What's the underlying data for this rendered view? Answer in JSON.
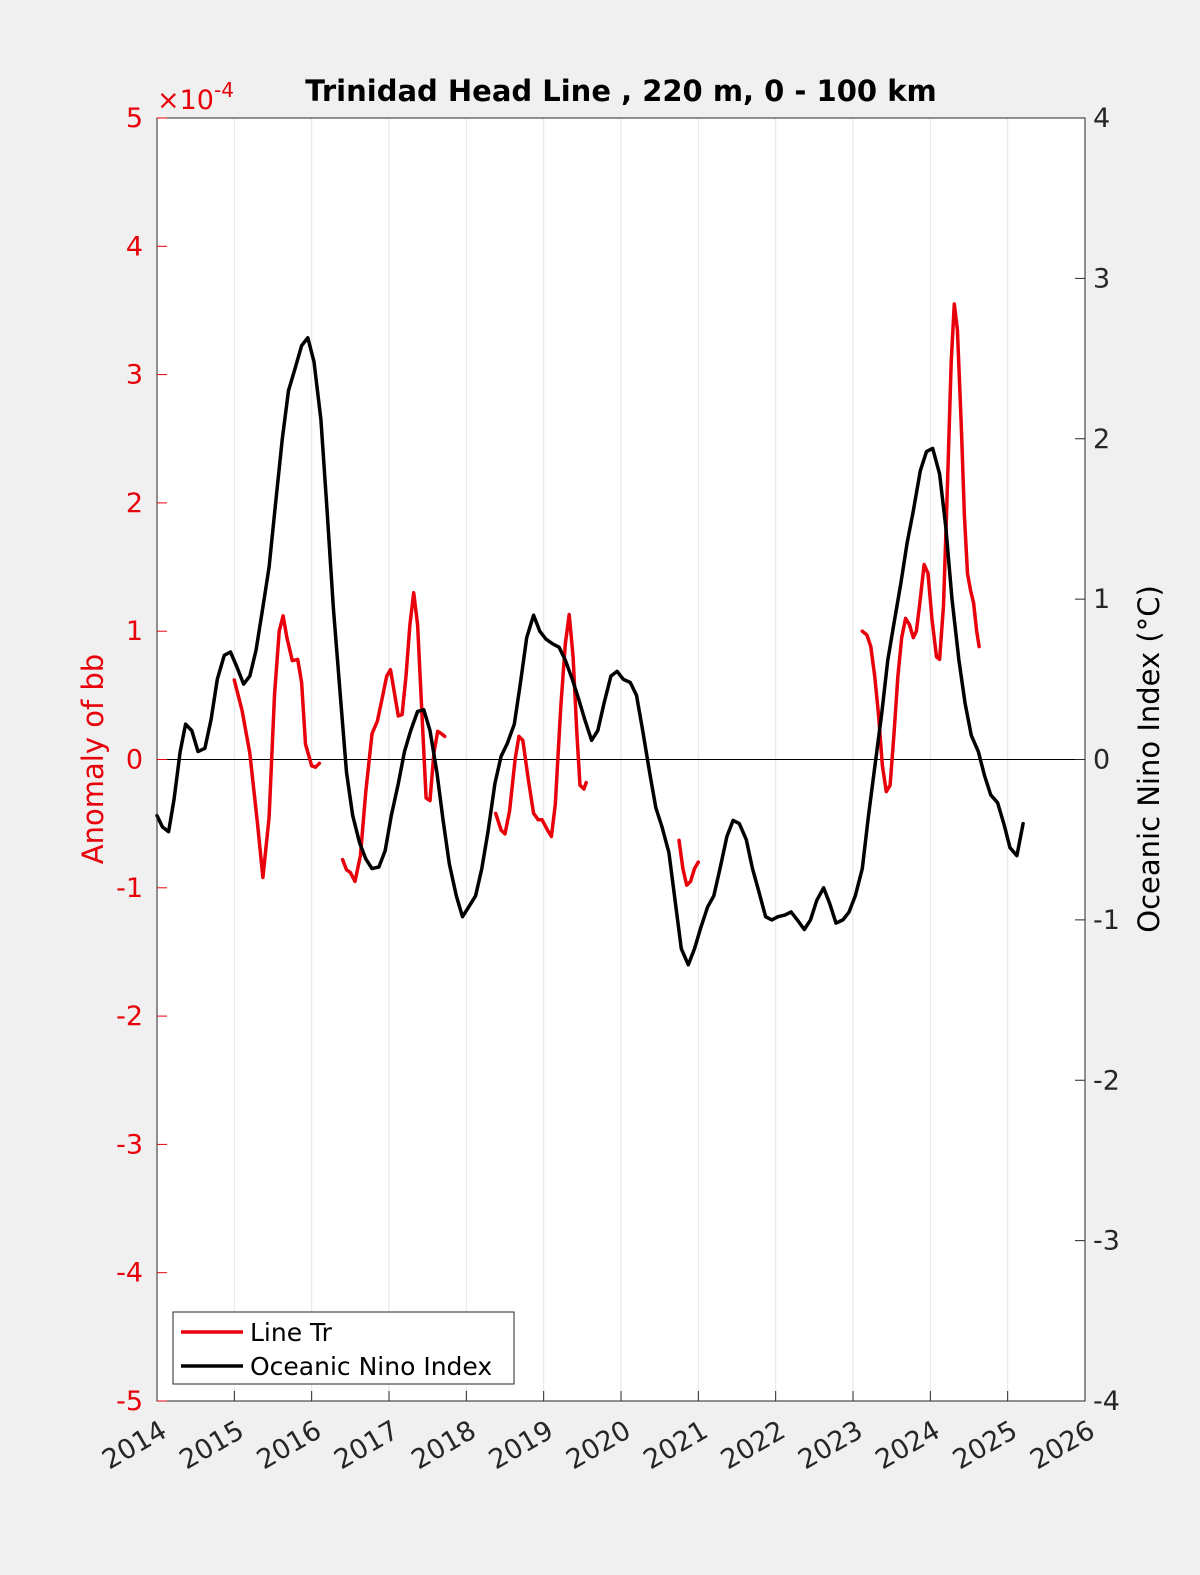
{
  "chart_data": {
    "type": "line",
    "title": "Trinidad Head Line , 220 m, 0 - 100 km",
    "xlabel": "",
    "y_left_label": "Anomaly of bb",
    "y_left_exponent_label": "×10",
    "y_left_exponent_value": "-4",
    "y_right_label": "Oceanic Nino Index (°C)",
    "xlim": [
      2014,
      2026
    ],
    "ylim_left": [
      -5,
      5
    ],
    "ylim_right": [
      -4,
      4
    ],
    "x_ticks": [
      "2014",
      "2015",
      "2016",
      "2017",
      "2018",
      "2019",
      "2020",
      "2021",
      "2022",
      "2023",
      "2024",
      "2025",
      "2026"
    ],
    "y_left_ticks": [
      "-5",
      "-4",
      "-3",
      "-2",
      "-1",
      "0",
      "1",
      "2",
      "3",
      "4",
      "5"
    ],
    "y_right_ticks": [
      "-4",
      "-3",
      "-2",
      "-1",
      "0",
      "1",
      "2",
      "3",
      "4"
    ],
    "grid": "vertical",
    "legend_position": "bottom-left",
    "colors": {
      "line_tr": "#e8000b",
      "oni": "#000000",
      "left_axis": "#e8000b"
    },
    "series": [
      {
        "name": "Line Tr",
        "axis": "left",
        "segments": [
          [
            [
              2015.0,
              0.62
            ],
            [
              2015.1,
              0.38
            ],
            [
              2015.2,
              0.05
            ],
            [
              2015.3,
              -0.5
            ],
            [
              2015.37,
              -0.92
            ],
            [
              2015.45,
              -0.45
            ],
            [
              2015.52,
              0.5
            ],
            [
              2015.58,
              1.0
            ],
            [
              2015.63,
              1.12
            ],
            [
              2015.68,
              0.95
            ],
            [
              2015.75,
              0.77
            ],
            [
              2015.82,
              0.78
            ],
            [
              2015.87,
              0.6
            ],
            [
              2015.92,
              0.12
            ],
            [
              2016.0,
              -0.05
            ],
            [
              2016.05,
              -0.06
            ],
            [
              2016.1,
              -0.03
            ]
          ],
          [
            [
              2016.4,
              -0.78
            ],
            [
              2016.45,
              -0.86
            ],
            [
              2016.5,
              -0.88
            ],
            [
              2016.56,
              -0.95
            ],
            [
              2016.63,
              -0.75
            ],
            [
              2016.7,
              -0.25
            ],
            [
              2016.78,
              0.2
            ],
            [
              2016.85,
              0.3
            ],
            [
              2016.92,
              0.5
            ],
            [
              2016.97,
              0.65
            ],
            [
              2017.02,
              0.7
            ],
            [
              2017.07,
              0.52
            ],
            [
              2017.12,
              0.34
            ],
            [
              2017.17,
              0.35
            ],
            [
              2017.22,
              0.65
            ],
            [
              2017.27,
              1.05
            ],
            [
              2017.32,
              1.3
            ],
            [
              2017.37,
              1.05
            ],
            [
              2017.43,
              0.3
            ],
            [
              2017.48,
              -0.3
            ],
            [
              2017.53,
              -0.32
            ],
            [
              2017.58,
              0.05
            ],
            [
              2017.63,
              0.22
            ],
            [
              2017.68,
              0.2
            ],
            [
              2017.72,
              0.18
            ]
          ],
          [
            [
              2018.38,
              -0.42
            ],
            [
              2018.45,
              -0.55
            ],
            [
              2018.5,
              -0.58
            ],
            [
              2018.56,
              -0.4
            ],
            [
              2018.63,
              0.0
            ],
            [
              2018.68,
              0.18
            ],
            [
              2018.73,
              0.15
            ],
            [
              2018.8,
              -0.15
            ],
            [
              2018.87,
              -0.42
            ],
            [
              2018.93,
              -0.47
            ],
            [
              2018.98,
              -0.47
            ],
            [
              2019.05,
              -0.55
            ],
            [
              2019.1,
              -0.6
            ],
            [
              2019.15,
              -0.35
            ],
            [
              2019.22,
              0.4
            ],
            [
              2019.28,
              0.9
            ],
            [
              2019.33,
              1.13
            ],
            [
              2019.38,
              0.8
            ],
            [
              2019.43,
              0.2
            ],
            [
              2019.47,
              -0.2
            ],
            [
              2019.52,
              -0.23
            ],
            [
              2019.55,
              -0.18
            ]
          ],
          [
            [
              2020.75,
              -0.63
            ],
            [
              2020.8,
              -0.85
            ],
            [
              2020.85,
              -0.98
            ],
            [
              2020.9,
              -0.95
            ],
            [
              2020.95,
              -0.85
            ],
            [
              2021.0,
              -0.8
            ]
          ],
          [
            [
              2023.12,
              1.0
            ],
            [
              2023.18,
              0.97
            ],
            [
              2023.23,
              0.88
            ],
            [
              2023.28,
              0.65
            ],
            [
              2023.33,
              0.35
            ],
            [
              2023.38,
              -0.05
            ],
            [
              2023.43,
              -0.25
            ],
            [
              2023.48,
              -0.2
            ],
            [
              2023.53,
              0.2
            ],
            [
              2023.58,
              0.65
            ],
            [
              2023.63,
              0.95
            ],
            [
              2023.68,
              1.1
            ],
            [
              2023.73,
              1.05
            ],
            [
              2023.78,
              0.95
            ],
            [
              2023.82,
              1.0
            ],
            [
              2023.87,
              1.25
            ],
            [
              2023.92,
              1.52
            ],
            [
              2023.97,
              1.45
            ],
            [
              2024.02,
              1.1
            ],
            [
              2024.08,
              0.8
            ],
            [
              2024.12,
              0.78
            ],
            [
              2024.17,
              1.2
            ],
            [
              2024.22,
              2.1
            ],
            [
              2024.27,
              3.1
            ],
            [
              2024.31,
              3.55
            ],
            [
              2024.35,
              3.35
            ],
            [
              2024.4,
              2.6
            ],
            [
              2024.44,
              1.9
            ],
            [
              2024.48,
              1.45
            ],
            [
              2024.52,
              1.32
            ],
            [
              2024.56,
              1.22
            ],
            [
              2024.6,
              1.0
            ],
            [
              2024.63,
              0.88
            ]
          ]
        ]
      },
      {
        "name": "Oceanic Nino Index",
        "axis": "right",
        "points": [
          [
            2014.0,
            -0.35
          ],
          [
            2014.07,
            -0.42
          ],
          [
            2014.15,
            -0.45
          ],
          [
            2014.22,
            -0.25
          ],
          [
            2014.3,
            0.05
          ],
          [
            2014.37,
            0.22
          ],
          [
            2014.45,
            0.18
          ],
          [
            2014.53,
            0.05
          ],
          [
            2014.62,
            0.07
          ],
          [
            2014.7,
            0.25
          ],
          [
            2014.78,
            0.5
          ],
          [
            2014.87,
            0.65
          ],
          [
            2014.95,
            0.67
          ],
          [
            2015.03,
            0.58
          ],
          [
            2015.12,
            0.47
          ],
          [
            2015.2,
            0.52
          ],
          [
            2015.28,
            0.68
          ],
          [
            2015.37,
            0.95
          ],
          [
            2015.45,
            1.2
          ],
          [
            2015.53,
            1.58
          ],
          [
            2015.62,
            2.0
          ],
          [
            2015.7,
            2.3
          ],
          [
            2015.78,
            2.43
          ],
          [
            2015.87,
            2.58
          ],
          [
            2015.95,
            2.63
          ],
          [
            2016.03,
            2.48
          ],
          [
            2016.12,
            2.12
          ],
          [
            2016.2,
            1.55
          ],
          [
            2016.28,
            0.95
          ],
          [
            2016.37,
            0.4
          ],
          [
            2016.45,
            -0.08
          ],
          [
            2016.53,
            -0.35
          ],
          [
            2016.62,
            -0.52
          ],
          [
            2016.7,
            -0.62
          ],
          [
            2016.78,
            -0.68
          ],
          [
            2016.87,
            -0.67
          ],
          [
            2016.95,
            -0.57
          ],
          [
            2017.03,
            -0.35
          ],
          [
            2017.12,
            -0.15
          ],
          [
            2017.2,
            0.05
          ],
          [
            2017.28,
            0.18
          ],
          [
            2017.37,
            0.3
          ],
          [
            2017.45,
            0.31
          ],
          [
            2017.53,
            0.18
          ],
          [
            2017.62,
            -0.08
          ],
          [
            2017.7,
            -0.38
          ],
          [
            2017.78,
            -0.65
          ],
          [
            2017.87,
            -0.85
          ],
          [
            2017.95,
            -0.98
          ],
          [
            2018.03,
            -0.92
          ],
          [
            2018.12,
            -0.85
          ],
          [
            2018.2,
            -0.68
          ],
          [
            2018.28,
            -0.45
          ],
          [
            2018.37,
            -0.15
          ],
          [
            2018.45,
            0.02
          ],
          [
            2018.53,
            0.1
          ],
          [
            2018.62,
            0.22
          ],
          [
            2018.7,
            0.48
          ],
          [
            2018.78,
            0.76
          ],
          [
            2018.87,
            0.9
          ],
          [
            2018.95,
            0.8
          ],
          [
            2019.03,
            0.75
          ],
          [
            2019.12,
            0.72
          ],
          [
            2019.2,
            0.7
          ],
          [
            2019.28,
            0.62
          ],
          [
            2019.37,
            0.5
          ],
          [
            2019.45,
            0.38
          ],
          [
            2019.53,
            0.25
          ],
          [
            2019.62,
            0.12
          ],
          [
            2019.7,
            0.18
          ],
          [
            2019.78,
            0.35
          ],
          [
            2019.87,
            0.52
          ],
          [
            2019.95,
            0.55
          ],
          [
            2020.03,
            0.5
          ],
          [
            2020.12,
            0.48
          ],
          [
            2020.2,
            0.4
          ],
          [
            2020.28,
            0.18
          ],
          [
            2020.37,
            -0.08
          ],
          [
            2020.45,
            -0.3
          ],
          [
            2020.53,
            -0.42
          ],
          [
            2020.62,
            -0.58
          ],
          [
            2020.7,
            -0.88
          ],
          [
            2020.78,
            -1.18
          ],
          [
            2020.87,
            -1.28
          ],
          [
            2020.95,
            -1.18
          ],
          [
            2021.03,
            -1.05
          ],
          [
            2021.12,
            -0.92
          ],
          [
            2021.2,
            -0.85
          ],
          [
            2021.28,
            -0.68
          ],
          [
            2021.37,
            -0.48
          ],
          [
            2021.45,
            -0.38
          ],
          [
            2021.53,
            -0.4
          ],
          [
            2021.62,
            -0.5
          ],
          [
            2021.7,
            -0.68
          ],
          [
            2021.78,
            -0.82
          ],
          [
            2021.87,
            -0.98
          ],
          [
            2021.95,
            -1.0
          ],
          [
            2022.03,
            -0.98
          ],
          [
            2022.12,
            -0.97
          ],
          [
            2022.2,
            -0.95
          ],
          [
            2022.28,
            -1.0
          ],
          [
            2022.37,
            -1.06
          ],
          [
            2022.45,
            -1.0
          ],
          [
            2022.53,
            -0.88
          ],
          [
            2022.62,
            -0.8
          ],
          [
            2022.7,
            -0.9
          ],
          [
            2022.78,
            -1.02
          ],
          [
            2022.87,
            -1.0
          ],
          [
            2022.95,
            -0.95
          ],
          [
            2023.03,
            -0.85
          ],
          [
            2023.12,
            -0.68
          ],
          [
            2023.2,
            -0.35
          ],
          [
            2023.28,
            -0.05
          ],
          [
            2023.37,
            0.28
          ],
          [
            2023.45,
            0.62
          ],
          [
            2023.53,
            0.85
          ],
          [
            2023.62,
            1.1
          ],
          [
            2023.7,
            1.35
          ],
          [
            2023.78,
            1.55
          ],
          [
            2023.87,
            1.8
          ],
          [
            2023.95,
            1.92
          ],
          [
            2024.03,
            1.94
          ],
          [
            2024.12,
            1.78
          ],
          [
            2024.2,
            1.45
          ],
          [
            2024.28,
            1.0
          ],
          [
            2024.37,
            0.62
          ],
          [
            2024.45,
            0.35
          ],
          [
            2024.53,
            0.15
          ],
          [
            2024.62,
            0.05
          ],
          [
            2024.7,
            -0.1
          ],
          [
            2024.78,
            -0.22
          ],
          [
            2024.87,
            -0.27
          ],
          [
            2024.95,
            -0.4
          ],
          [
            2025.03,
            -0.55
          ],
          [
            2025.12,
            -0.6
          ],
          [
            2025.2,
            -0.4
          ]
        ]
      }
    ]
  }
}
